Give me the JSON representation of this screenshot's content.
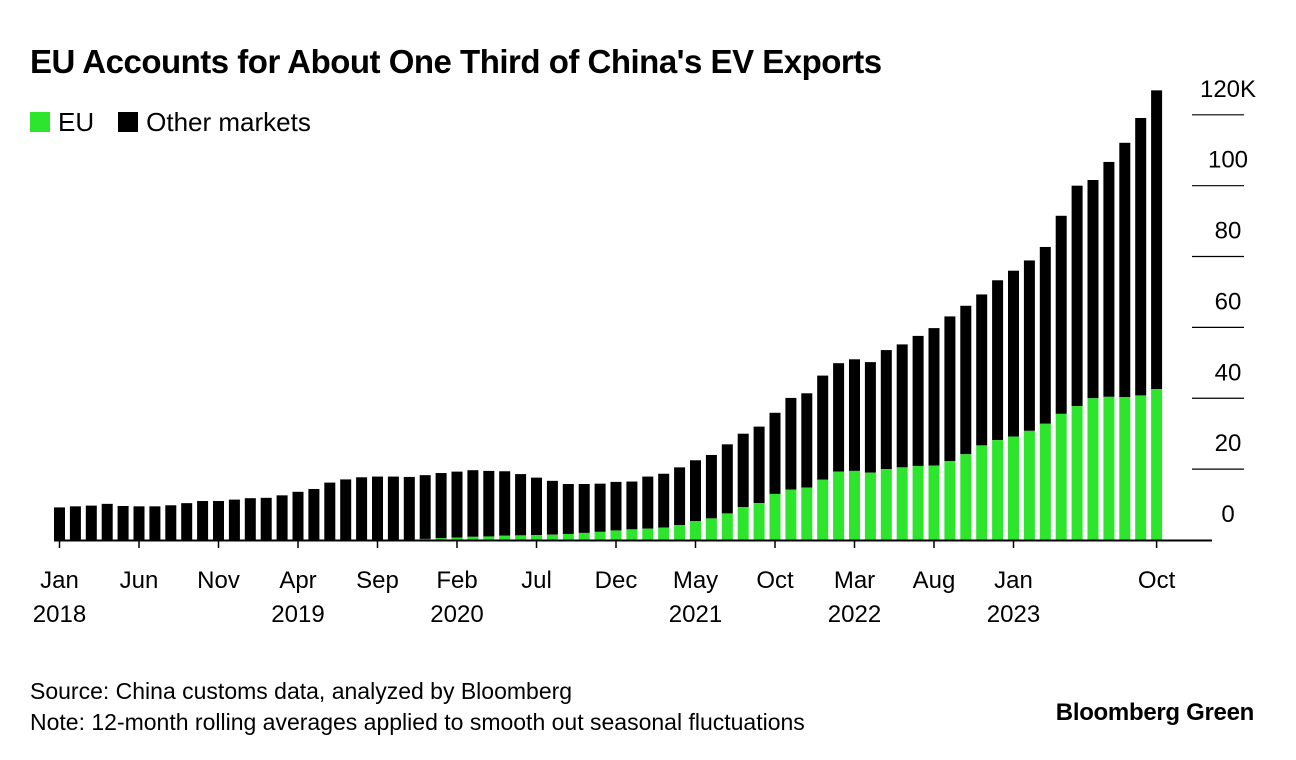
{
  "title": "EU Accounts for About One Third of China's EV Exports",
  "legend": [
    {
      "label": "EU",
      "color": "#2ee52e"
    },
    {
      "label": "Other markets",
      "color": "#000000"
    }
  ],
  "footer": {
    "source": "Source: China customs data, analyzed by Bloomberg",
    "note": "Note: 12-month rolling averages applied to smooth out seasonal fluctuations"
  },
  "brand": "Bloomberg Green",
  "chart_data": {
    "type": "bar",
    "stacked": true,
    "title": "EU Accounts for About One Third of China's EV Exports",
    "y_ticks": [
      "120K",
      "100",
      "80",
      "60",
      "40",
      "20",
      "0"
    ],
    "ylim": [
      0,
      127000
    ],
    "x_ticks": [
      {
        "month": "Jan",
        "year": "2018",
        "index": 0
      },
      {
        "month": "Jun",
        "year": "",
        "index": 5
      },
      {
        "month": "Nov",
        "year": "",
        "index": 10
      },
      {
        "month": "Apr",
        "year": "2019",
        "index": 15
      },
      {
        "month": "Sep",
        "year": "",
        "index": 20
      },
      {
        "month": "Feb",
        "year": "2020",
        "index": 25
      },
      {
        "month": "Jul",
        "year": "",
        "index": 30
      },
      {
        "month": "Dec",
        "year": "",
        "index": 35
      },
      {
        "month": "May",
        "year": "2021",
        "index": 40
      },
      {
        "month": "Oct",
        "year": "",
        "index": 45
      },
      {
        "month": "Mar",
        "year": "2022",
        "index": 50
      },
      {
        "month": "Aug",
        "year": "",
        "index": 55
      },
      {
        "month": "Jan",
        "year": "2023",
        "index": 60
      },
      {
        "month": "Oct",
        "year": "",
        "index": 69
      }
    ],
    "series": [
      {
        "name": "EU",
        "color": "#2ee52e",
        "values": [
          0,
          0,
          0,
          0,
          0,
          0,
          0,
          0,
          0,
          0,
          0,
          0,
          0,
          0,
          0,
          0,
          0,
          0,
          0,
          0,
          0,
          0,
          100,
          300,
          500,
          700,
          900,
          1000,
          1200,
          1300,
          1400,
          1500,
          1700,
          2000,
          2300,
          2700,
          3000,
          3200,
          3500,
          4200,
          5300,
          6100,
          7500,
          9300,
          10400,
          13000,
          14200,
          14800,
          17000,
          19300,
          19500,
          19000,
          20000,
          20500,
          20900,
          21000,
          22300,
          24200,
          26700,
          28200,
          29200,
          30800,
          32800,
          35600,
          37800,
          40000,
          40400,
          40300,
          40800,
          42600
        ]
      },
      {
        "name": "Other markets",
        "color": "#000000",
        "values": [
          9200,
          9500,
          9700,
          10200,
          9600,
          9500,
          9500,
          9800,
          10400,
          11000,
          11000,
          11400,
          11800,
          11900,
          12600,
          13600,
          14400,
          16200,
          17100,
          17700,
          17900,
          17900,
          17700,
          18000,
          18400,
          18600,
          18800,
          18500,
          18200,
          17300,
          16200,
          15200,
          14100,
          13800,
          13600,
          13700,
          13500,
          14700,
          15200,
          16300,
          17200,
          17900,
          19500,
          20700,
          21600,
          22900,
          25900,
          26600,
          29400,
          30600,
          31500,
          31200,
          33600,
          34700,
          36700,
          38800,
          40800,
          41900,
          42600,
          45100,
          46800,
          48100,
          49900,
          55900,
          62200,
          61600,
          66300,
          71800,
          78300,
          84300
        ]
      }
    ]
  }
}
